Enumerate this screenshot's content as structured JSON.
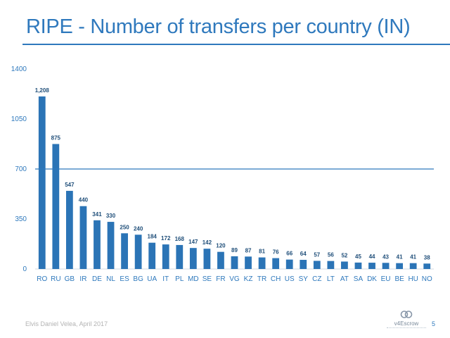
{
  "slide": {
    "title": "RIPE - Number of transfers per country (IN)",
    "author": "Elvis Daniel Velea, April 2017",
    "page_number": "5",
    "logo_text": "v4Escrow"
  },
  "colors": {
    "bar": "#2b74b6",
    "reference_line": "#2f79bd",
    "title": "#2f79bd",
    "axis_text": "#2f79bd",
    "data_label": "#1f4e79"
  },
  "chart_data": {
    "type": "bar",
    "title": "",
    "xlabel": "",
    "ylabel": "",
    "categories": [
      "RO",
      "RU",
      "GB",
      "IR",
      "DE",
      "NL",
      "ES",
      "BG",
      "UA",
      "IT",
      "PL",
      "MD",
      "SE",
      "FR",
      "VG",
      "KZ",
      "TR",
      "CH",
      "US",
      "SY",
      "CZ",
      "LT",
      "AT",
      "SA",
      "DK",
      "EU",
      "BE",
      "HU",
      "NO"
    ],
    "values": [
      1208,
      875,
      547,
      440,
      341,
      330,
      250,
      240,
      184,
      172,
      168,
      147,
      142,
      120,
      89,
      87,
      81,
      76,
      66,
      64,
      57,
      56,
      52,
      45,
      44,
      43,
      41,
      41,
      38
    ],
    "value_labels": [
      "1,208",
      "875",
      "547",
      "440",
      "341",
      "330",
      "250",
      "240",
      "184",
      "172",
      "168",
      "147",
      "142",
      "120",
      "89",
      "87",
      "81",
      "76",
      "66",
      "64",
      "57",
      "56",
      "52",
      "45",
      "44",
      "43",
      "41",
      "41",
      "38"
    ],
    "y_ticks": [
      0,
      350,
      700,
      1050,
      1400
    ],
    "y_tick_labels": [
      "0",
      "350",
      "700",
      "1050",
      "1400"
    ],
    "ylim": [
      0,
      1400
    ],
    "reference_line": 700,
    "grid": false,
    "legend": "none"
  }
}
